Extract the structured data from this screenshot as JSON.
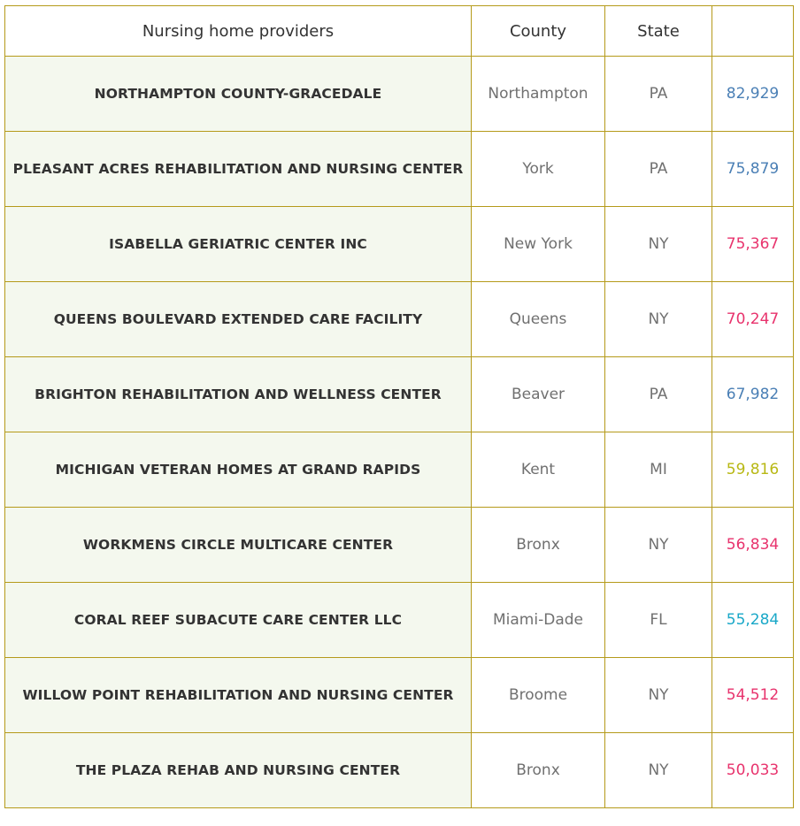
{
  "table": {
    "headers": [
      "Nursing home providers",
      "County",
      "State",
      ""
    ]
  },
  "chart_data": {
    "type": "table",
    "columns": [
      "Nursing home providers",
      "County",
      "State",
      ""
    ],
    "rows": [
      {
        "provider": "NORTHAMPTON COUNTY-GRACEDALE",
        "county": "Northampton",
        "state": "PA",
        "value": "82,929",
        "value_num": 82929,
        "color": "#4a7fb5"
      },
      {
        "provider": "PLEASANT ACRES REHABILITATION AND NURSING CENTER",
        "county": "York",
        "state": "PA",
        "value": "75,879",
        "value_num": 75879,
        "color": "#4a7fb5"
      },
      {
        "provider": "ISABELLA GERIATRIC CENTER INC",
        "county": "New York",
        "state": "NY",
        "value": "75,367",
        "value_num": 75367,
        "color": "#e8336d"
      },
      {
        "provider": "QUEENS BOULEVARD EXTENDED CARE FACILITY",
        "county": "Queens",
        "state": "NY",
        "value": "70,247",
        "value_num": 70247,
        "color": "#e8336d"
      },
      {
        "provider": "BRIGHTON REHABILITATION AND WELLNESS CENTER",
        "county": "Beaver",
        "state": "PA",
        "value": "67,982",
        "value_num": 67982,
        "color": "#4a7fb5"
      },
      {
        "provider": "MICHIGAN VETERAN HOMES AT GRAND RAPIDS",
        "county": "Kent",
        "state": "MI",
        "value": "59,816",
        "value_num": 59816,
        "color": "#b8b814"
      },
      {
        "provider": "WORKMENS CIRCLE MULTICARE CENTER",
        "county": "Bronx",
        "state": "NY",
        "value": "56,834",
        "value_num": 56834,
        "color": "#e8336d"
      },
      {
        "provider": "CORAL REEF SUBACUTE CARE CENTER LLC",
        "county": "Miami-Dade",
        "state": "FL",
        "value": "55,284",
        "value_num": 55284,
        "color": "#1aa8c8"
      },
      {
        "provider": "WILLOW POINT REHABILITATION AND NURSING CENTER",
        "county": "Broome",
        "state": "NY",
        "value": "54,512",
        "value_num": 54512,
        "color": "#e8336d"
      },
      {
        "provider": "THE PLAZA REHAB AND NURSING CENTER",
        "county": "Bronx",
        "state": "NY",
        "value": "50,033",
        "value_num": 50033,
        "color": "#e8336d"
      }
    ]
  }
}
